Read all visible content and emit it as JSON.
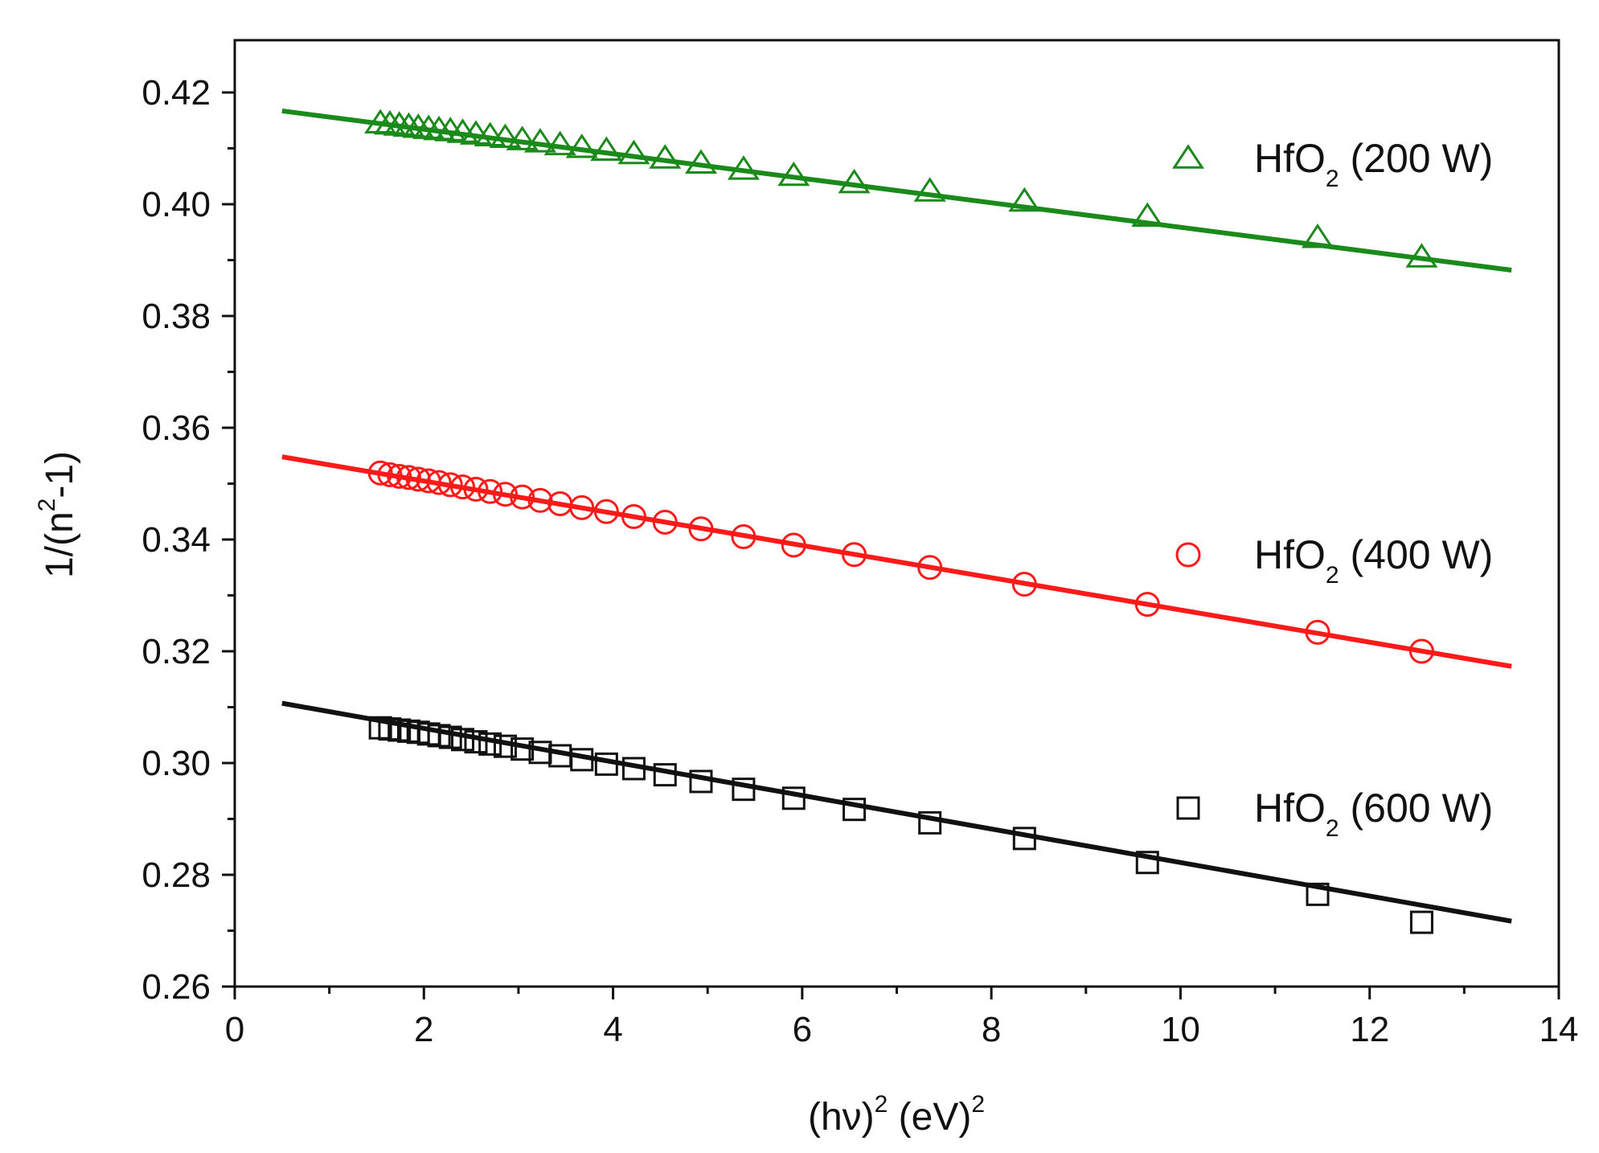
{
  "chart_data": {
    "type": "scatter",
    "title": "",
    "xlabel": {
      "main": "(hν)",
      "sup1": "2",
      "unit": " (eV)",
      "sup2": "2"
    },
    "ylabel": {
      "main": "1/(n",
      "sup": "2",
      "rest": "-1)"
    },
    "xlim": [
      0,
      14
    ],
    "ylim": [
      0.26,
      0.43
    ],
    "xticks": [
      0,
      2,
      4,
      6,
      8,
      10,
      12,
      14
    ],
    "xtick_labels": [
      "0",
      "2",
      "4",
      "6",
      "8",
      "10",
      "12",
      "14"
    ],
    "yticks": [
      0.26,
      0.28,
      0.3,
      0.32,
      0.34,
      0.36,
      0.38,
      0.4,
      0.42
    ],
    "ytick_labels": [
      "0.26",
      "0.28",
      "0.30",
      "0.32",
      "0.34",
      "0.36",
      "0.38",
      "0.40",
      "0.42"
    ],
    "x": [
      1.54,
      1.64,
      1.74,
      1.84,
      1.94,
      2.05,
      2.16,
      2.28,
      2.41,
      2.55,
      2.7,
      2.86,
      3.04,
      3.23,
      3.44,
      3.67,
      3.93,
      4.22,
      4.55,
      4.93,
      5.38,
      5.91,
      6.55,
      7.35,
      8.35,
      9.65,
      11.45,
      12.55
    ],
    "series": [
      {
        "name": "HfO2 (200 W)",
        "color": "#1a8a1a",
        "marker": "triangle",
        "fit": {
          "x": [
            0.5,
            13.5
          ],
          "y": [
            0.4167,
            0.3882
          ]
        },
        "y": [
          0.4145,
          0.4143,
          0.4141,
          0.4139,
          0.4137,
          0.4135,
          0.4133,
          0.4131,
          0.4128,
          0.4125,
          0.4122,
          0.4119,
          0.4115,
          0.4111,
          0.4106,
          0.4101,
          0.4096,
          0.409,
          0.4082,
          0.4073,
          0.4062,
          0.4051,
          0.4038,
          0.4023,
          0.4005,
          0.3978,
          0.394,
          0.3905
        ]
      },
      {
        "name": "HfO2 (400 W)",
        "color": "#ff1a1a",
        "marker": "circle",
        "fit": {
          "x": [
            0.5,
            13.5
          ],
          "y": [
            0.3548,
            0.3173
          ]
        },
        "y": [
          0.3519,
          0.3516,
          0.3513,
          0.3511,
          0.3508,
          0.3505,
          0.3502,
          0.3498,
          0.3494,
          0.349,
          0.3486,
          0.3481,
          0.3476,
          0.347,
          0.3464,
          0.3457,
          0.345,
          0.3441,
          0.3431,
          0.3419,
          0.3405,
          0.339,
          0.3373,
          0.335,
          0.332,
          0.3284,
          0.3234,
          0.32
        ]
      },
      {
        "name": "HfO2 (600 W)",
        "color": "#111111",
        "marker": "square",
        "fit": {
          "x": [
            0.5,
            13.5
          ],
          "y": [
            0.3107,
            0.2717
          ]
        },
        "y": [
          0.3063,
          0.3061,
          0.3059,
          0.3057,
          0.3055,
          0.3052,
          0.3049,
          0.3046,
          0.3042,
          0.3038,
          0.3034,
          0.303,
          0.3025,
          0.3019,
          0.3013,
          0.3006,
          0.2998,
          0.299,
          0.2979,
          0.2967,
          0.2953,
          0.2937,
          0.2917,
          0.2893,
          0.2865,
          0.2822,
          0.2765,
          0.2715
        ]
      }
    ],
    "legend": {
      "position": "right",
      "entries": [
        {
          "series": 0,
          "base": "HfO",
          "sub": "2",
          "suffix": " (200 W)"
        },
        {
          "series": 1,
          "base": "HfO",
          "sub": "2",
          "suffix": " (400 W)"
        },
        {
          "series": 2,
          "base": "HfO",
          "sub": "2",
          "suffix": " (600 W)"
        }
      ]
    }
  }
}
